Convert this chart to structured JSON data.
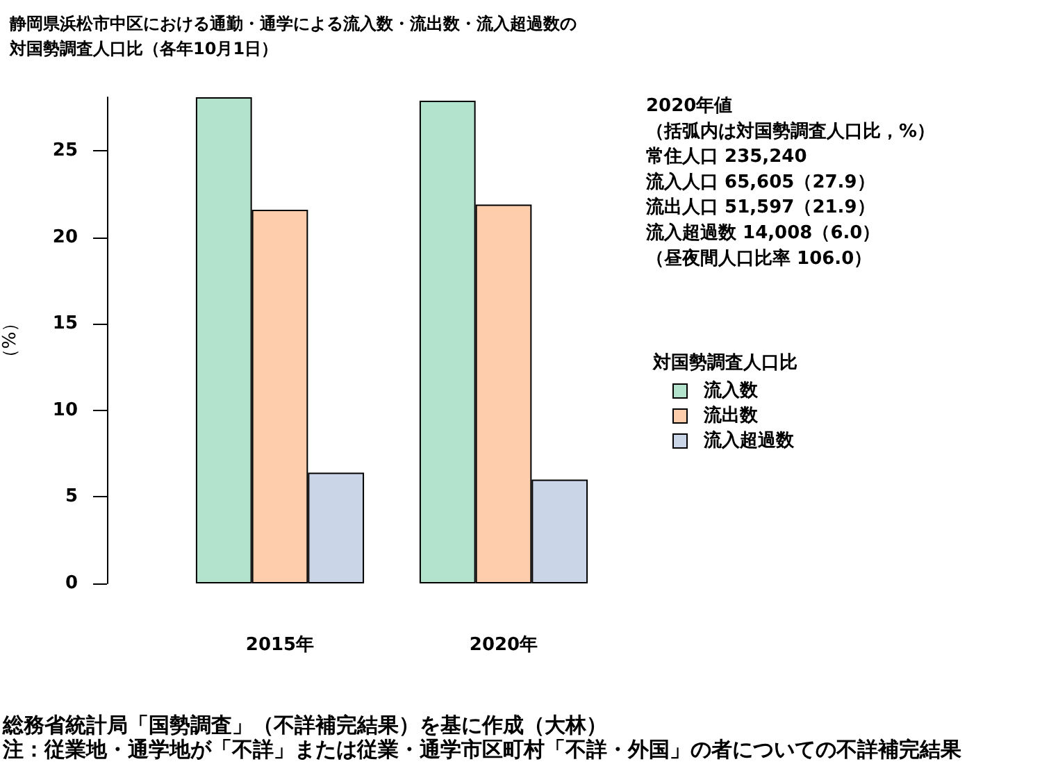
{
  "chart_data": {
    "type": "bar",
    "title": "静岡県浜松市中区における通勤・通学による流入数・流出数・流入超過数の対国勢調査人口比（各年10月1日）",
    "ylabel": "（%）",
    "legend_title": "対国勢調査人口比",
    "categories": [
      "2015年",
      "2020年"
    ],
    "series": [
      {
        "name": "流入数",
        "color": "#b3e2cd",
        "values": [
          28.1,
          27.9
        ]
      },
      {
        "name": "流出数",
        "color": "#fdcdac",
        "values": [
          21.6,
          21.9
        ]
      },
      {
        "name": "流入超過数",
        "color": "#cbd5e8",
        "values": [
          6.4,
          6.0
        ]
      }
    ],
    "ylim": [
      0,
      28.1
    ],
    "yticks": [
      0,
      5,
      10,
      15,
      20,
      25
    ],
    "legend": "right",
    "annotations": [
      "2020年値",
      "（括弧内は対国勢調査人口比，%）",
      "常住人口 235,240",
      "流入人口 65,605（27.9）",
      "流出人口 51,597（21.9）",
      "流入超過数 14,008（6.0）",
      "（昼夜間人口比率 106.0）",
      "総務省統計局「国勢調査」（不詳補完結果）を基に作成（大林）",
      "注：従業地・通学地が「不詳」または従業・通学市区町村「不詳・外国」の者についての不詳補完結果"
    ]
  }
}
